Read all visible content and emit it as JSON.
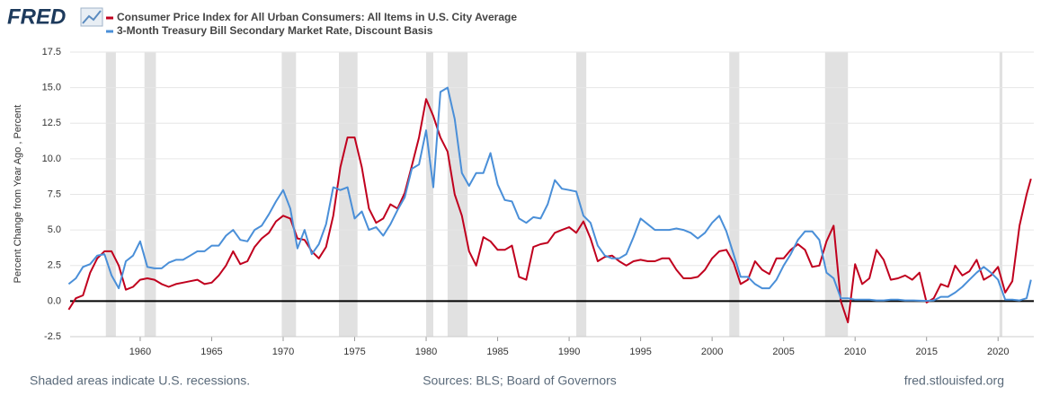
{
  "logo": "FRED",
  "footer": {
    "left": "Shaded areas indicate U.S. recessions.",
    "center": "Sources: BLS; Board of Governors",
    "right": "fred.stlouisfed.org"
  },
  "chart_data": {
    "type": "line",
    "y_label": "Percent Change from Year Ago , Percent",
    "x": [
      1955,
      1955.5,
      1956,
      1956.5,
      1957,
      1957.5,
      1958,
      1958.5,
      1959,
      1959.5,
      1960,
      1960.5,
      1961,
      1961.5,
      1962,
      1962.5,
      1963,
      1963.5,
      1964,
      1964.5,
      1965,
      1965.5,
      1966,
      1966.5,
      1967,
      1967.5,
      1968,
      1968.5,
      1969,
      1969.5,
      1970,
      1970.5,
      1971,
      1971.5,
      1972,
      1972.5,
      1973,
      1973.5,
      1974,
      1974.5,
      1975,
      1975.5,
      1976,
      1976.5,
      1977,
      1977.5,
      1978,
      1978.5,
      1979,
      1979.5,
      1980,
      1980.5,
      1981,
      1981.5,
      1982,
      1982.5,
      1983,
      1983.5,
      1984,
      1984.5,
      1985,
      1985.5,
      1986,
      1986.5,
      1987,
      1987.5,
      1988,
      1988.5,
      1989,
      1989.5,
      1990,
      1990.5,
      1991,
      1991.5,
      1992,
      1992.5,
      1993,
      1993.5,
      1994,
      1994.5,
      1995,
      1995.5,
      1996,
      1996.5,
      1997,
      1997.5,
      1998,
      1998.5,
      1999,
      1999.5,
      2000,
      2000.5,
      2001,
      2001.5,
      2002,
      2002.5,
      2003,
      2003.5,
      2004,
      2004.5,
      2005,
      2005.5,
      2006,
      2006.5,
      2007,
      2007.5,
      2008,
      2008.5,
      2009,
      2009.5,
      2010,
      2010.5,
      2011,
      2011.5,
      2012,
      2012.5,
      2013,
      2013.5,
      2014,
      2014.5,
      2015,
      2015.5,
      2016,
      2016.5,
      2017,
      2017.5,
      2018,
      2018.5,
      2019,
      2019.5,
      2020,
      2020.5,
      2021,
      2021.5,
      2022,
      2022.3
    ],
    "series": [
      {
        "name": "Consumer Price Index for All Urban Consumers: All Items in U.S. City Average",
        "color": "#c0001e",
        "values": [
          -0.6,
          0.2,
          0.4,
          2.0,
          3.0,
          3.5,
          3.5,
          2.5,
          0.8,
          1.0,
          1.5,
          1.6,
          1.5,
          1.2,
          1.0,
          1.2,
          1.3,
          1.4,
          1.5,
          1.2,
          1.3,
          1.8,
          2.5,
          3.5,
          2.6,
          2.8,
          3.8,
          4.4,
          4.8,
          5.6,
          6.0,
          5.8,
          4.4,
          4.3,
          3.5,
          3.0,
          3.8,
          6.0,
          9.4,
          11.5,
          11.5,
          9.4,
          6.5,
          5.5,
          5.8,
          6.8,
          6.5,
          7.6,
          9.5,
          11.5,
          14.2,
          13.0,
          11.5,
          10.5,
          7.5,
          6.0,
          3.5,
          2.5,
          4.5,
          4.2,
          3.6,
          3.6,
          3.9,
          1.7,
          1.5,
          3.8,
          4.0,
          4.1,
          4.8,
          5.0,
          5.2,
          4.8,
          5.6,
          4.4,
          2.8,
          3.1,
          3.2,
          2.8,
          2.5,
          2.8,
          2.9,
          2.8,
          2.8,
          3.0,
          3.0,
          2.2,
          1.6,
          1.6,
          1.7,
          2.2,
          3.0,
          3.5,
          3.6,
          2.7,
          1.2,
          1.5,
          2.8,
          2.2,
          1.9,
          3.0,
          3.0,
          3.6,
          4.0,
          3.6,
          2.4,
          2.5,
          4.2,
          5.3,
          0.0,
          -1.5,
          2.6,
          1.2,
          1.6,
          3.6,
          2.9,
          1.5,
          1.6,
          1.8,
          1.5,
          2.0,
          -0.1,
          0.2,
          1.2,
          1.0,
          2.5,
          1.8,
          2.1,
          2.9,
          1.5,
          1.8,
          2.4,
          0.6,
          1.4,
          5.3,
          7.5,
          8.6
        ]
      },
      {
        "name": "3-Month Treasury Bill Secondary Market Rate, Discount Basis",
        "color": "#4a8fd8",
        "values": [
          1.2,
          1.6,
          2.4,
          2.6,
          3.2,
          3.3,
          1.8,
          0.9,
          2.8,
          3.2,
          4.2,
          2.4,
          2.3,
          2.3,
          2.7,
          2.9,
          2.9,
          3.2,
          3.5,
          3.5,
          3.9,
          3.9,
          4.6,
          5.0,
          4.3,
          4.2,
          5.0,
          5.3,
          6.1,
          7.0,
          7.8,
          6.5,
          3.7,
          5.0,
          3.3,
          4.0,
          5.4,
          8.0,
          7.8,
          8.0,
          5.8,
          6.3,
          5.0,
          5.2,
          4.6,
          5.4,
          6.4,
          7.3,
          9.3,
          9.6,
          12.0,
          8.0,
          14.7,
          15.0,
          12.8,
          9.0,
          8.1,
          9.0,
          9.0,
          10.4,
          8.2,
          7.1,
          7.0,
          5.8,
          5.5,
          5.9,
          5.8,
          6.8,
          8.5,
          7.9,
          7.8,
          7.7,
          6.0,
          5.5,
          3.9,
          3.2,
          3.0,
          3.0,
          3.3,
          4.5,
          5.8,
          5.4,
          5.0,
          5.0,
          5.0,
          5.1,
          5.0,
          4.8,
          4.4,
          4.8,
          5.5,
          6.0,
          4.9,
          3.3,
          1.7,
          1.7,
          1.2,
          0.9,
          0.9,
          1.5,
          2.5,
          3.3,
          4.3,
          4.9,
          4.9,
          4.3,
          2.0,
          1.6,
          0.2,
          0.2,
          0.1,
          0.1,
          0.1,
          0.05,
          0.05,
          0.1,
          0.1,
          0.05,
          0.05,
          0.03,
          0.02,
          0.05,
          0.3,
          0.3,
          0.6,
          1.0,
          1.5,
          2.0,
          2.4,
          2.0,
          1.5,
          0.1,
          0.1,
          0.05,
          0.2,
          1.5
        ]
      }
    ],
    "recessions": [
      [
        1957.6,
        1958.3
      ],
      [
        1960.3,
        1961.1
      ],
      [
        1969.9,
        1970.9
      ],
      [
        1973.9,
        1975.2
      ],
      [
        1980.0,
        1980.5
      ],
      [
        1981.5,
        1982.9
      ],
      [
        1990.5,
        1991.2
      ],
      [
        2001.2,
        2001.9
      ],
      [
        2007.9,
        2009.5
      ],
      [
        2020.1,
        2020.3
      ]
    ],
    "recession_color": "#e1e1e1",
    "xlim": [
      1955.1,
      2022.5
    ],
    "xticks": [
      1960,
      1965,
      1970,
      1975,
      1980,
      1985,
      1990,
      1995,
      2000,
      2005,
      2010,
      2015,
      2020
    ],
    "ylim": [
      -2.5,
      17.5
    ],
    "yticks": [
      17.5,
      {
        "value": 15,
        "label": "15.0"
      },
      12.5,
      {
        "value": 10,
        "label": "10.0"
      },
      7.5,
      {
        "value": 5,
        "label": "5.0"
      },
      2.5,
      {
        "value": 0,
        "label": "0.0"
      },
      -2.5
    ],
    "grid": true
  }
}
